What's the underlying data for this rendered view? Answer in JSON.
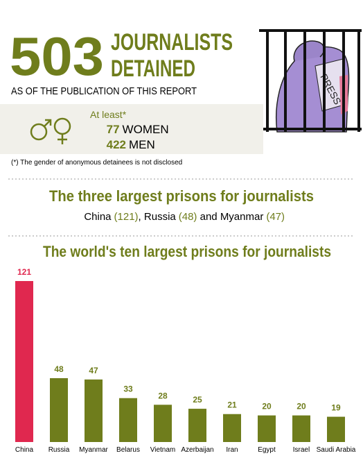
{
  "header": {
    "big_number": "503",
    "headline": [
      "JOURNALISTS",
      "DETAINED"
    ],
    "subtitle": "AS OF THE PUBLICATION OF THIS REPORT"
  },
  "gender": {
    "intro": "At least*",
    "women": {
      "count": "77",
      "label": "WOMEN"
    },
    "men": {
      "count": "422",
      "label": "MEN"
    },
    "footnote": "(*) The gender of anonymous detainees is not disclosed"
  },
  "illustration": {
    "label": "PRESS"
  },
  "three_largest": {
    "title": "The three largest prisons for journalists",
    "items": [
      {
        "name": "China",
        "count": "(121)"
      },
      {
        "name": "Russia",
        "count": "(48)"
      },
      {
        "name": "Myanmar",
        "count": "(47)"
      }
    ],
    "joiners": [
      ", ",
      " and "
    ]
  },
  "chart_data": {
    "type": "bar",
    "title": "The world's ten largest prisons for journalists",
    "categories": [
      "China",
      "Russia",
      "Myanmar",
      "Belarus",
      "Vietnam",
      "Azerbaijan",
      "Iran",
      "Egypt",
      "Israel",
      "Saudi Arabia"
    ],
    "values": [
      121,
      48,
      47,
      33,
      28,
      25,
      21,
      20,
      20,
      19
    ],
    "colors": [
      "#e0284f",
      "#6f7d1c",
      "#6f7d1c",
      "#6f7d1c",
      "#6f7d1c",
      "#6f7d1c",
      "#6f7d1c",
      "#6f7d1c",
      "#6f7d1c",
      "#6f7d1c"
    ]
  }
}
